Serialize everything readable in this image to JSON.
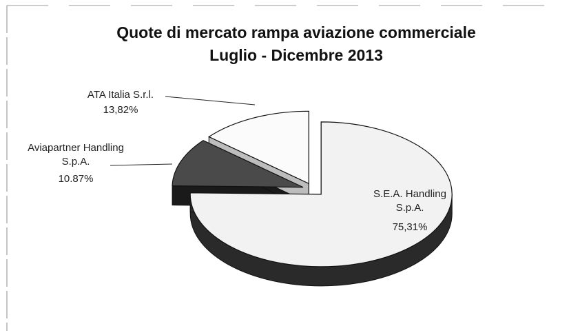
{
  "chart_data": {
    "type": "pie",
    "title": "Quote di mercato rampa aviazione commerciale",
    "subtitle": "Luglio - Dicembre 2013",
    "categories": [
      "S.E.A. Handling S.p.A.",
      "Aviapartner Handling S.p.A.",
      "ATA Italia S.r.l."
    ],
    "values": [
      75.31,
      10.87,
      13.82
    ],
    "value_labels": [
      "75,31%",
      "10.87%",
      "13,82%"
    ],
    "colors": [
      "#f2f2f2",
      "#4a4a4a",
      "#fbfbfb"
    ],
    "side_colors": [
      "#2a2a2a",
      "#1a1a1a",
      "#bdbdbd"
    ]
  }
}
